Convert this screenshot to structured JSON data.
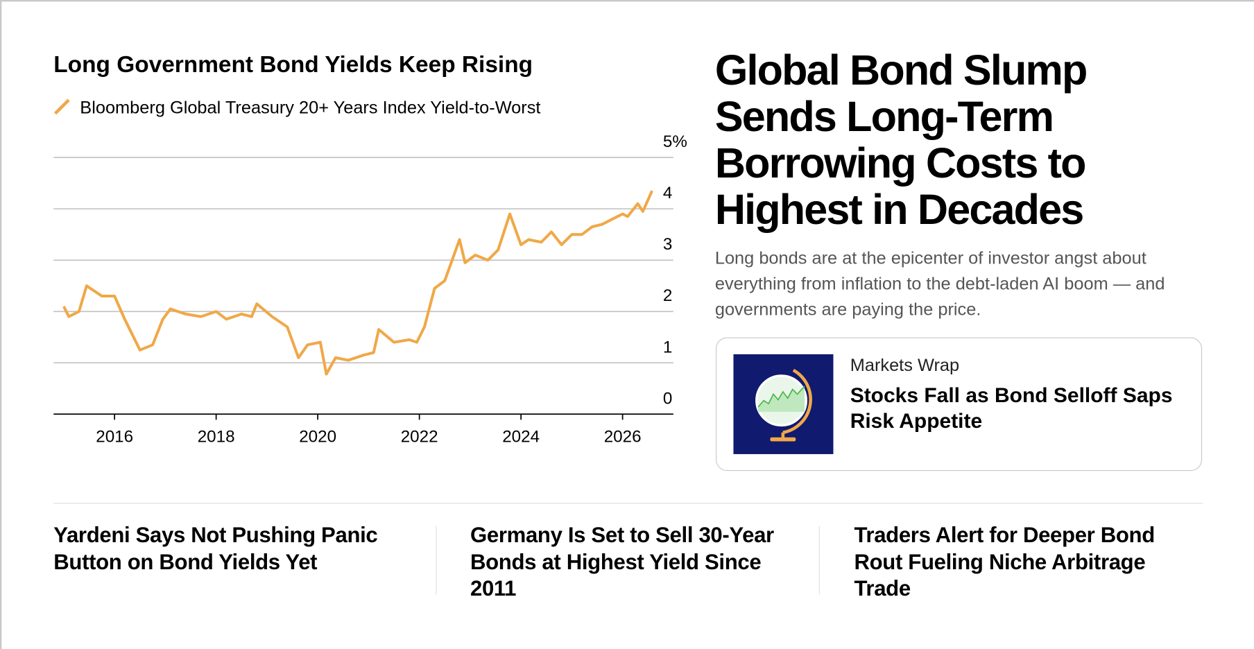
{
  "chart_data": {
    "type": "line",
    "title": "Long Government Bond Yields Keep Rising",
    "series": [
      {
        "name": "Bloomberg Global Treasury 20+ Years Index Yield-to-Worst",
        "color": "#f0a848",
        "x": [
          2015.0,
          2015.1,
          2015.3,
          2015.45,
          2015.75,
          2016.0,
          2016.2,
          2016.5,
          2016.75,
          2016.95,
          2017.1,
          2017.4,
          2017.7,
          2018.0,
          2018.2,
          2018.5,
          2018.7,
          2018.8,
          2019.1,
          2019.4,
          2019.62,
          2019.8,
          2020.05,
          2020.17,
          2020.35,
          2020.6,
          2020.9,
          2021.1,
          2021.2,
          2021.5,
          2021.8,
          2021.95,
          2022.1,
          2022.3,
          2022.5,
          2022.79,
          2022.9,
          2023.1,
          2023.35,
          2023.55,
          2023.78,
          2024.0,
          2024.15,
          2024.4,
          2024.6,
          2024.8,
          2025.0,
          2025.2,
          2025.4,
          2025.6,
          2025.8,
          2026.0,
          2026.1,
          2026.3,
          2026.4,
          2026.58
        ],
        "values": [
          2.1,
          1.9,
          2.0,
          2.5,
          2.3,
          2.3,
          1.85,
          1.25,
          1.35,
          1.85,
          2.05,
          1.95,
          1.9,
          2.0,
          1.85,
          1.95,
          1.9,
          2.15,
          1.9,
          1.7,
          1.1,
          1.35,
          1.4,
          0.78,
          1.1,
          1.05,
          1.15,
          1.2,
          1.65,
          1.4,
          1.45,
          1.4,
          1.7,
          2.45,
          2.6,
          3.4,
          2.95,
          3.1,
          3.0,
          3.2,
          3.9,
          3.3,
          3.4,
          3.35,
          3.55,
          3.3,
          3.5,
          3.5,
          3.65,
          3.7,
          3.8,
          3.9,
          3.85,
          4.1,
          3.95,
          4.35
        ]
      }
    ],
    "xlim": [
      2014.8,
      2027.0
    ],
    "xticks": [
      2016,
      2018,
      2020,
      2022,
      2024,
      2026
    ],
    "ylim": [
      0,
      5
    ],
    "yticks": [
      0,
      1,
      2,
      3,
      4,
      {
        "value": 5,
        "label": "5%"
      }
    ],
    "grid": true
  },
  "headline": "Global Bond Slump Sends Long-Term Borrowing Costs to Highest in Decades",
  "dek": "Long bonds are at the epicenter of investor angst about everything from inflation to the debt-laden AI boom — and governments are paying the price.",
  "card": {
    "kicker": "Markets Wrap",
    "title": "Stocks Fall as Bond Selloff Saps Risk Appetite"
  },
  "stories": [
    "Yardeni Says Not Pushing Panic Button on Bond Yields Yet",
    "Germany Is Set to Sell 30-Year Bonds at Highest Yield Since 2011",
    "Traders Alert for Deeper Bond Rout Fueling Niche Arbitrage Trade"
  ]
}
